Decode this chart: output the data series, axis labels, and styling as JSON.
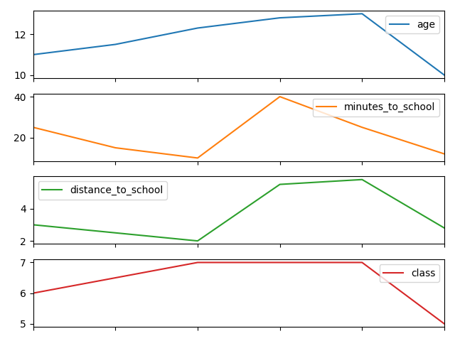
{
  "x": [
    0,
    1,
    2,
    3,
    4,
    5
  ],
  "age": [
    11.0,
    11.5,
    12.3,
    12.8,
    13.0,
    10.0
  ],
  "minutes_to_school": [
    25,
    15,
    10,
    40,
    25,
    12
  ],
  "distance_to_school": [
    3.0,
    2.5,
    2.0,
    5.5,
    5.8,
    2.8
  ],
  "class": [
    6.0,
    6.5,
    7.0,
    7.0,
    7.0,
    5.0
  ],
  "age_color": "#1f77b4",
  "minutes_color": "#ff7f0e",
  "distance_color": "#2ca02c",
  "class_color": "#d62728"
}
